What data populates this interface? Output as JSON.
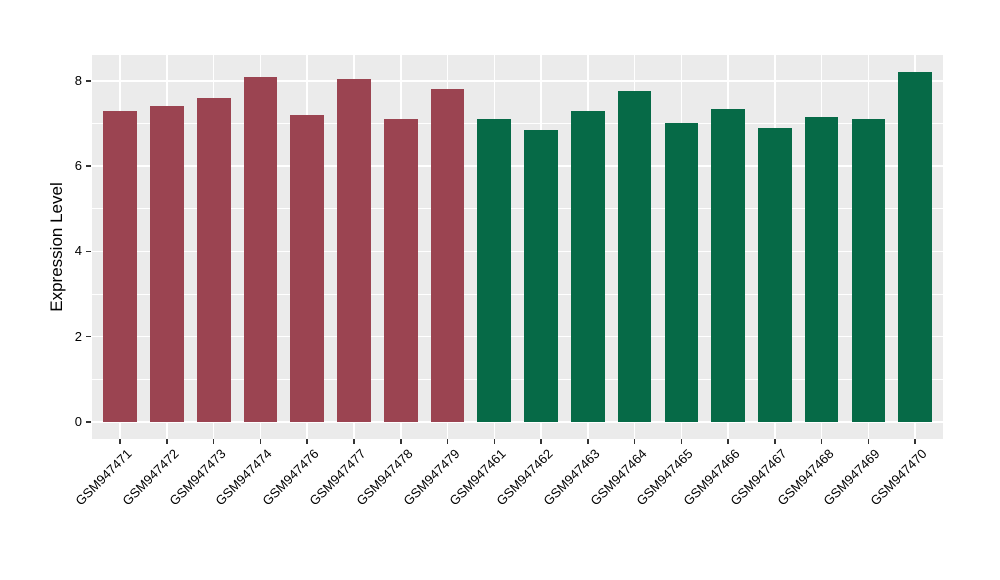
{
  "chart_data": {
    "type": "bar",
    "title": "",
    "xlabel": "",
    "ylabel": "Expression Level",
    "ylim": [
      -0.4,
      8.6
    ],
    "yticks": [
      0,
      2,
      4,
      6,
      8
    ],
    "yticks_minor": [
      1,
      3,
      5,
      7
    ],
    "grid": "on",
    "legend": "none",
    "panel_background": "#EBEBEB",
    "gridline_color": "#FFFFFF",
    "axis_text_color": "#000000",
    "categories": [
      "GSM947471",
      "GSM947472",
      "GSM947473",
      "GSM947474",
      "GSM947476",
      "GSM947477",
      "GSM947478",
      "GSM947479",
      "GSM947461",
      "GSM947462",
      "GSM947463",
      "GSM947464",
      "GSM947465",
      "GSM947466",
      "GSM947467",
      "GSM947468",
      "GSM947469",
      "GSM947470"
    ],
    "values": [
      7.3,
      7.4,
      7.6,
      8.1,
      7.2,
      8.05,
      7.1,
      7.8,
      7.1,
      6.85,
      7.3,
      7.75,
      7.0,
      7.35,
      6.9,
      7.15,
      7.1,
      8.2
    ],
    "bar_groups": [
      "maroon",
      "maroon",
      "maroon",
      "maroon",
      "maroon",
      "maroon",
      "maroon",
      "maroon",
      "green",
      "green",
      "green",
      "green",
      "green",
      "green",
      "green",
      "green",
      "green",
      "green"
    ],
    "group_colors": {
      "maroon": "#9B4451",
      "green": "#066A47"
    }
  }
}
